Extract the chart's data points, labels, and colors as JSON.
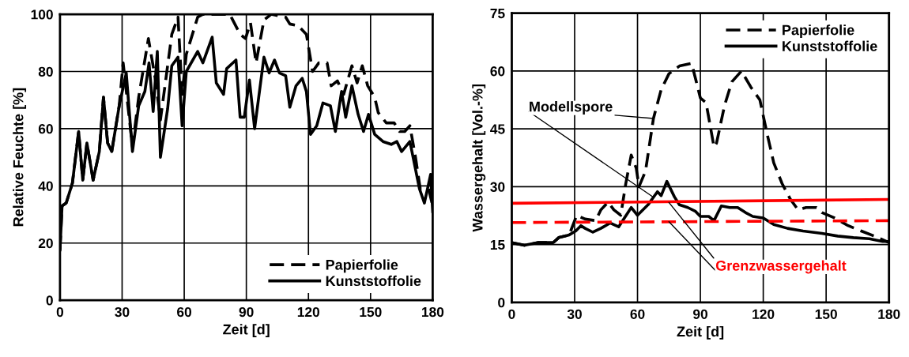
{
  "chart_data": [
    {
      "type": "line",
      "xlabel": "Zeit [d]",
      "ylabel": "Relative Feuchte [%]",
      "xlim": [
        0,
        180
      ],
      "ylim": [
        0,
        100
      ],
      "xticks": [
        0,
        30,
        60,
        90,
        120,
        150,
        180
      ],
      "yticks": [
        0,
        20,
        40,
        60,
        80,
        100
      ],
      "grid": true,
      "legend": "lower right",
      "marker": "none",
      "series": [
        {
          "name": "Papierfolie",
          "color": "#000000",
          "line_style": "dashed",
          "x": [
            0,
            1,
            3,
            6,
            9,
            11,
            13,
            16,
            19,
            21,
            23,
            25,
            28.6,
            30.5,
            35,
            38,
            42.7,
            46,
            48.5,
            54,
            57,
            59,
            61,
            66.5,
            69,
            82,
            87,
            89.6,
            92,
            94.7,
            98.5,
            102,
            109,
            111,
            115,
            119,
            122,
            125,
            129,
            131,
            134,
            137,
            141,
            143.5,
            146,
            148.6,
            152,
            153.7,
            157.6,
            161.4,
            164,
            166.5,
            169,
            171.7,
            174,
            178,
            180
          ],
          "values": [
            17.6,
            33,
            34,
            41,
            59,
            42,
            55,
            42,
            52,
            71,
            55,
            52,
            68,
            83,
            53.6,
            71,
            91.5,
            77.6,
            63,
            93,
            99,
            72,
            86,
            99,
            100,
            100,
            93,
            91.5,
            97,
            83,
            98,
            100,
            99,
            96.6,
            96,
            93,
            80,
            83,
            83,
            75,
            76.7,
            72,
            82,
            76,
            82,
            75,
            71,
            65.6,
            62,
            62,
            59,
            59,
            61,
            50,
            39,
            39,
            33
          ]
        },
        {
          "name": "Kunststoffolie",
          "color": "#000000",
          "line_style": "solid",
          "x": [
            0,
            1,
            3,
            6,
            9,
            11,
            13,
            16,
            19,
            21,
            23,
            25,
            28.6,
            32,
            35,
            38,
            41,
            43,
            45,
            47,
            48.5,
            52,
            54,
            57,
            59,
            61,
            66.5,
            69,
            73.5,
            75.5,
            79,
            80.5,
            85,
            87,
            89,
            91.5,
            94,
            98.5,
            101,
            103.6,
            106,
            109,
            111,
            114,
            117,
            119,
            121,
            124,
            127,
            130.6,
            133,
            136,
            138,
            141,
            144,
            146.6,
            149,
            152,
            156,
            160,
            162.7,
            165,
            169,
            173.6,
            176,
            179,
            180
          ],
          "values": [
            17.6,
            33,
            34,
            41,
            59,
            42,
            55,
            42,
            52,
            71,
            55,
            52,
            68,
            79.5,
            52,
            68,
            73,
            83,
            66,
            87,
            50,
            67,
            82,
            85,
            61,
            80,
            87,
            83,
            92,
            76,
            72,
            81,
            84,
            64,
            64,
            77,
            60,
            85,
            79.5,
            84,
            79.5,
            78.5,
            67.5,
            75,
            77.6,
            73,
            58,
            61,
            69,
            68,
            59,
            73,
            64,
            75,
            65,
            59,
            65,
            58,
            55.5,
            54.5,
            55.5,
            52,
            55.5,
            39,
            34,
            44,
            31
          ]
        }
      ]
    },
    {
      "type": "line",
      "xlabel": "Zeit [d]",
      "ylabel": "Wassergehalt [Vol.-%]",
      "xlim": [
        0,
        180
      ],
      "ylim": [
        0,
        75
      ],
      "xticks": [
        0,
        30,
        60,
        90,
        120,
        150,
        180
      ],
      "yticks": [
        0,
        15,
        30,
        45,
        60,
        75
      ],
      "grid": true,
      "legend": "upper right",
      "marker": "none",
      "annotations": [
        {
          "text": "Modellspore",
          "x": 67.6,
          "y": 47.7
        },
        {
          "text": "Grenzwassergehalt",
          "x": 75,
          "y": 25.9
        }
      ],
      "series": [
        {
          "name": "Papierfolie",
          "color": "#000000",
          "line_style": "dashed",
          "x": [
            0,
            6,
            12.3,
            19.8,
            22.4,
            27.4,
            31,
            35,
            40,
            42.5,
            46,
            48.7,
            52,
            54.4,
            57,
            59.4,
            60.7,
            63.8,
            67.6,
            71.3,
            75,
            80,
            85.8,
            87.7,
            90,
            92.7,
            96.5,
            97.7,
            101.5,
            105,
            109.6,
            114,
            118.4,
            121.6,
            125,
            129,
            133,
            136.6,
            140.4,
            145.4,
            148,
            154,
            160.5,
            166.8,
            173,
            180
          ],
          "values": [
            15.5,
            14.8,
            15.5,
            15.5,
            16.8,
            17.5,
            22.6,
            21.6,
            21.2,
            24,
            26,
            24,
            22.6,
            30.8,
            38.2,
            34.8,
            30,
            34,
            47.7,
            55.2,
            59.3,
            61.3,
            62,
            58,
            53,
            51.8,
            40.3,
            41.3,
            51,
            57.2,
            60,
            55.9,
            52.5,
            44.3,
            36.2,
            30.8,
            26.7,
            24,
            24.6,
            24.6,
            23.3,
            21.9,
            19.9,
            18.5,
            17.2,
            15.5
          ]
        },
        {
          "name": "Kunststoffolie",
          "color": "#000000",
          "line_style": "solid",
          "x": [
            0,
            6,
            12.3,
            19.8,
            22.4,
            27.4,
            30.5,
            33,
            35,
            38.7,
            42.5,
            47,
            51,
            57,
            60,
            65,
            69.5,
            71.3,
            74,
            77.6,
            80,
            84,
            87.7,
            90,
            94,
            96.5,
            100,
            104,
            107.8,
            111.5,
            115,
            120,
            125,
            131.6,
            139,
            148,
            155.5,
            163,
            170.6,
            177,
            180
          ],
          "values": [
            15.5,
            14.8,
            15.5,
            15.5,
            16.8,
            17.5,
            18.5,
            19.9,
            19.2,
            18.2,
            19.2,
            20.6,
            19.6,
            24.6,
            22.6,
            25.3,
            28.7,
            27.7,
            31.4,
            27.4,
            25.3,
            24.6,
            23.6,
            22.3,
            22.3,
            21.2,
            25,
            24.6,
            24.6,
            23.3,
            22.3,
            21.9,
            20.2,
            19.2,
            18.5,
            17.9,
            17.2,
            16.8,
            16.5,
            15.8,
            15.8
          ]
        },
        {
          "color": "#ff0000",
          "line_style": "solid",
          "x": [
            0,
            180
          ],
          "values": [
            25.7,
            26.7
          ]
        },
        {
          "color": "#ff0000",
          "line_style": "dashed",
          "x": [
            0,
            180
          ],
          "values": [
            20.7,
            21.2
          ]
        }
      ]
    }
  ]
}
